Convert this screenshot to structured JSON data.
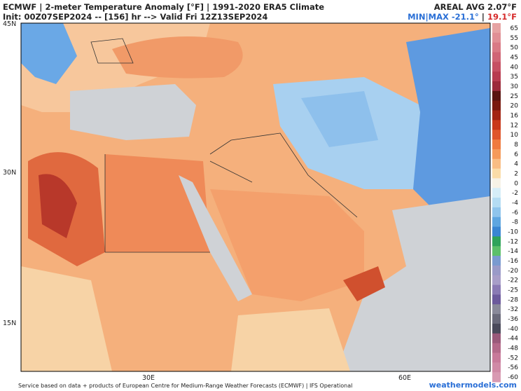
{
  "header": {
    "title": "ECMWF | 2-meter Temperature Anomaly [°F] | 1991-2020 ERA5 Climate",
    "init": "Init: 00Z07SEP2024 -- [156] hr --> Valid Fri 12Z13SEP2024",
    "areal": "AREAL AVG 2.07°F",
    "minmax": {
      "min": "MIN|MAX -21.1°",
      "sep": "|",
      "max": "19.1°F"
    }
  },
  "map": {
    "lat_labels": [
      "45N",
      "30N",
      "15N"
    ],
    "lon_labels": [
      "30E",
      "60E"
    ]
  },
  "colorbar": {
    "labels": [
      "65",
      "55",
      "50",
      "45",
      "40",
      "35",
      "30",
      "25",
      "20",
      "16",
      "12",
      "10",
      "8",
      "6",
      "4",
      "2",
      "0",
      "-2",
      "-4",
      "-6",
      "-8",
      "-10",
      "-12",
      "-14",
      "-16",
      "-20",
      "-22",
      "-25",
      "-28",
      "-32",
      "-36",
      "-40",
      "-44",
      "-48",
      "-52",
      "-56",
      "-60"
    ],
    "colors": [
      "#e6a3a3",
      "#e08f95",
      "#d97a85",
      "#d06575",
      "#c65063",
      "#b83c50",
      "#9c2a3a",
      "#5a1410",
      "#7a1a0e",
      "#a32412",
      "#c9381a",
      "#e0562a",
      "#ef7a3e",
      "#f59a5a",
      "#f9bd84",
      "#fbdca8",
      "#f7f2e6",
      "#d6eef8",
      "#b4dcf3",
      "#8ec4ec",
      "#5ea6e0",
      "#3a86d2",
      "#2fa35a",
      "#5cc06a",
      "#7a9ad0",
      "#9a9ac8",
      "#a89ec8",
      "#8a7ab4",
      "#6c5a9c",
      "#8a8a9a",
      "#6a6a7a",
      "#4a4a5a",
      "#9a5a7a",
      "#b46a8a",
      "#c87a9a",
      "#d08aa6",
      "#d89ab2"
    ]
  },
  "footer": {
    "credit": "Service based on data + products of European Centre for Medium-Range Weather Forecasts (ECMWF) | IFS Operational",
    "site": "weathermodels.com"
  }
}
